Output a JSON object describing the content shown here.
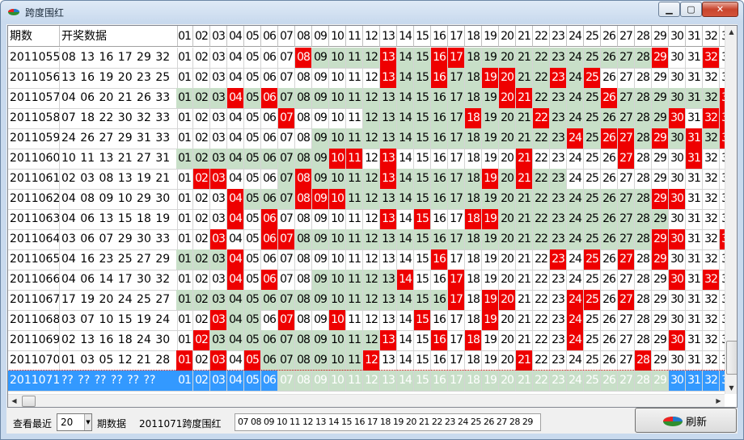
{
  "window": {
    "title": "跨度围红",
    "min_label": "▁",
    "max_label": "▢",
    "close_label": "✕"
  },
  "colors": {
    "red": "#ee0000",
    "green": "#c8dfc8",
    "selection": "#3399ff"
  },
  "headers": {
    "period": "期数",
    "draw": "开奖数据",
    "numbers": [
      "01",
      "02",
      "03",
      "04",
      "05",
      "06",
      "07",
      "08",
      "09",
      "10",
      "11",
      "12",
      "13",
      "14",
      "15",
      "16",
      "17",
      "18",
      "19",
      "20",
      "21",
      "22",
      "23",
      "24",
      "25",
      "26",
      "27",
      "28",
      "29",
      "30",
      "31",
      "32",
      "33"
    ]
  },
  "rows": [
    {
      "period": "2011055",
      "draw": "08 13 16 17 29 32",
      "reds": [
        8,
        13,
        16,
        17,
        29,
        32
      ],
      "gr": [
        9,
        28
      ]
    },
    {
      "period": "2011056",
      "draw": "13 16 19 20 23 25",
      "reds": [
        13,
        16,
        19,
        20,
        23,
        25
      ],
      "gr": [
        14,
        24
      ]
    },
    {
      "period": "2011057",
      "draw": "04 06 20 21 26 33",
      "reds": [
        4,
        6,
        20,
        21,
        26,
        33
      ],
      "gr": [
        1,
        32
      ]
    },
    {
      "period": "2011058",
      "draw": "07 18 22 30 32 33",
      "reds": [
        7,
        18,
        22,
        30,
        32,
        33
      ],
      "gr": [
        12,
        29
      ]
    },
    {
      "period": "2011059",
      "draw": "24 26 27 29 31 33",
      "reds": [
        24,
        26,
        27,
        29,
        31,
        33
      ],
      "gr": [
        9,
        32
      ]
    },
    {
      "period": "2011060",
      "draw": "10 11 13 21 27 31",
      "reds": [
        10,
        11,
        13,
        21,
        27,
        31
      ],
      "gr": [
        1,
        9
      ]
    },
    {
      "period": "2011061",
      "draw": "02 03 08 13 19 21",
      "reds": [
        2,
        3,
        8,
        13,
        19,
        21
      ],
      "gr": [
        7,
        23
      ]
    },
    {
      "period": "2011062",
      "draw": "04 08 09 10 29 30",
      "reds": [
        4,
        8,
        9,
        10,
        29,
        30
      ],
      "gr": [
        5,
        28
      ]
    },
    {
      "period": "2011063",
      "draw": "04 06 13 15 18 19",
      "reds": [
        4,
        6,
        13,
        15,
        18,
        19
      ],
      "gr": [
        20,
        29
      ]
    },
    {
      "period": "2011064",
      "draw": "03 06 07 29 30 33",
      "reds": [
        3,
        6,
        7,
        29,
        30,
        33
      ],
      "gr": [
        8,
        28
      ]
    },
    {
      "period": "2011065",
      "draw": "04 16 23 25 27 29",
      "reds": [
        4,
        16,
        23,
        25,
        27,
        29
      ],
      "gr": [
        1,
        3
      ]
    },
    {
      "period": "2011066",
      "draw": "04 06 14 17 30 32",
      "reds": [
        4,
        6,
        14,
        17,
        30,
        32
      ],
      "gr": [
        9,
        13
      ]
    },
    {
      "period": "2011067",
      "draw": "17 19 20 24 25 27",
      "reds": [
        17,
        19,
        20,
        24,
        25,
        27
      ],
      "gr": [
        1,
        16
      ]
    },
    {
      "period": "2011068",
      "draw": "03 07 10 15 19 24",
      "reds": [
        3,
        7,
        10,
        15,
        19,
        24
      ],
      "gr": [
        4,
        5
      ]
    },
    {
      "period": "2011069",
      "draw": "02 13 16 18 24 30",
      "reds": [
        2,
        13,
        16,
        18,
        24,
        30
      ],
      "gr": [
        3,
        12
      ]
    },
    {
      "period": "2011070",
      "draw": "01 03 05 12 21 28",
      "reds": [
        1,
        3,
        5,
        12,
        21,
        28
      ],
      "gr": [
        6,
        11
      ]
    },
    {
      "period": "2011071",
      "draw": "?? ?? ?? ?? ?? ??",
      "reds": [],
      "gr": [
        7,
        29
      ],
      "selected": true
    }
  ],
  "footer": {
    "recent_label": "查看最近",
    "recent_value": "20",
    "recent_suffix": "期数据",
    "target_label": "2011071跨度围红",
    "result_numbers": "07 08 09 10 11 12 13 14 15 16 17 18 19 20 21 22 23 24 25 26 27 28 29",
    "refresh_label": "刷新"
  }
}
